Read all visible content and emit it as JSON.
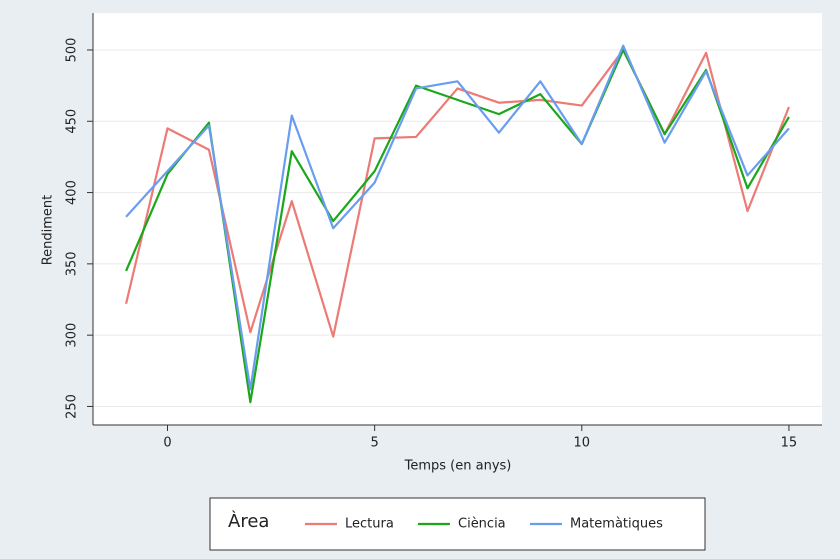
{
  "chart_data": {
    "type": "line",
    "x_label": "Temps (en anys)",
    "y_label": "Rendiment",
    "x": [
      -1,
      0,
      1,
      2,
      3,
      4,
      5,
      6,
      7,
      8,
      9,
      10,
      11,
      12,
      13,
      14,
      15
    ],
    "series": [
      {
        "name": "Lectura",
        "color": "#ec7b76",
        "values": [
          322,
          445,
          430,
          302,
          394,
          299,
          438,
          439,
          473,
          463,
          465,
          461,
          500,
          441,
          498,
          387,
          460
        ]
      },
      {
        "name": "Ciència",
        "color": "#1aa81a",
        "values": [
          345,
          413,
          449,
          253,
          429,
          380,
          415,
          475,
          465,
          455,
          469,
          434,
          500,
          441,
          486,
          403,
          453
        ]
      },
      {
        "name": "Matemàtiques",
        "color": "#6a9cf0",
        "values": [
          383,
          415,
          447,
          262,
          454,
          375,
          407,
          473,
          478,
          442,
          478,
          434,
          503,
          435,
          485,
          412,
          445
        ]
      }
    ],
    "xlim": [
      -1.75,
      15.75
    ],
    "xticks": [
      0,
      5,
      10,
      15
    ],
    "ylim": [
      237,
      514
    ],
    "yticks": [
      250,
      300,
      350,
      400,
      450,
      500
    ],
    "grid": true,
    "legend_title": "Àrea",
    "legend_position": "bottom"
  }
}
